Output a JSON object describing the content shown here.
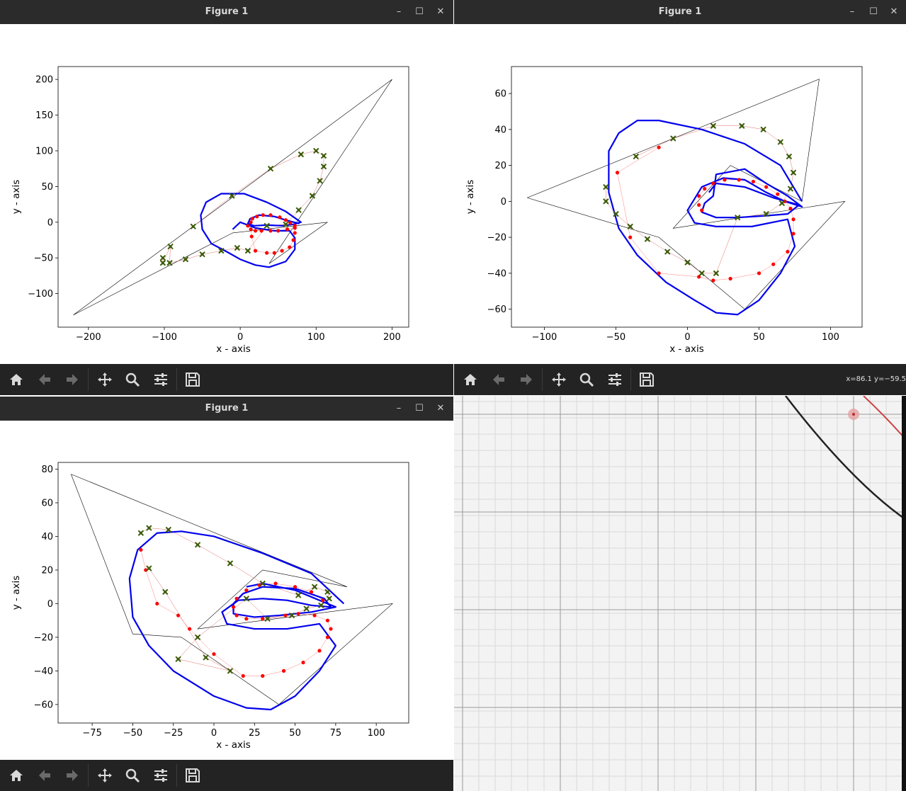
{
  "windows": [
    {
      "id": "w1",
      "title": "Figure 1",
      "coord_readout": "",
      "chart_data": {
        "type": "line",
        "xlabel": "x - axis",
        "ylabel": "y - axis",
        "xlim": [
          -240,
          222
        ],
        "ylim": [
          -147,
          218
        ],
        "xticks": [
          -200,
          -100,
          0,
          100,
          200
        ],
        "yticks": [
          -100,
          -50,
          0,
          50,
          100,
          150,
          200
        ],
        "tick_labels_x": [
          "−200",
          "−100",
          "0",
          "100",
          "200"
        ],
        "tick_labels_y": [
          "−100",
          "−50",
          "0",
          "50",
          "100",
          "150",
          "200"
        ],
        "polygon": [
          [
            -220,
            -130
          ],
          [
            200,
            200
          ],
          [
            38,
            -58
          ],
          [
            115,
            0
          ],
          [
            -10,
            -15
          ],
          [
            -220,
            -130
          ]
        ],
        "star_path": [
          [
            -102,
            -50
          ],
          [
            -102,
            -57
          ],
          [
            -92,
            -34
          ],
          [
            -93,
            -57
          ],
          [
            -72,
            -52
          ],
          [
            -50,
            -45
          ],
          [
            -25,
            -40
          ],
          [
            -4,
            -36
          ],
          [
            10,
            -40
          ],
          [
            35,
            -5
          ],
          [
            60,
            -3
          ],
          [
            77,
            17
          ],
          [
            95,
            37
          ],
          [
            105,
            58
          ],
          [
            110,
            78
          ],
          [
            110,
            93
          ],
          [
            100,
            100
          ],
          [
            80,
            95
          ],
          [
            40,
            75
          ],
          [
            -11,
            37
          ],
          [
            -62,
            -6
          ]
        ],
        "red_path": [
          [
            10,
            -5
          ],
          [
            14,
            -10
          ],
          [
            20,
            -12
          ],
          [
            28,
            -12
          ],
          [
            40,
            -12
          ],
          [
            50,
            -12
          ],
          [
            62,
            -10
          ],
          [
            72,
            -8
          ],
          [
            72,
            -15
          ],
          [
            70,
            -25
          ],
          [
            65,
            -35
          ],
          [
            55,
            -40
          ],
          [
            45,
            -43
          ],
          [
            35,
            -43
          ],
          [
            20,
            -40
          ],
          [
            15,
            -20
          ],
          [
            14,
            0
          ],
          [
            16,
            5
          ],
          [
            22,
            8
          ],
          [
            30,
            10
          ],
          [
            40,
            10
          ],
          [
            52,
            7
          ],
          [
            60,
            3
          ],
          [
            66,
            -1
          ],
          [
            72,
            -5
          ]
        ],
        "blue_curve": [
          [
            -10,
            -10
          ],
          [
            0,
            0
          ],
          [
            20,
            -8
          ],
          [
            45,
            -12
          ],
          [
            65,
            -12
          ],
          [
            72,
            -22
          ],
          [
            72,
            -38
          ],
          [
            60,
            -55
          ],
          [
            38,
            -63
          ],
          [
            20,
            -60
          ],
          [
            0,
            -52
          ],
          [
            -20,
            -40
          ],
          [
            -38,
            -30
          ],
          [
            -50,
            -10
          ],
          [
            -52,
            10
          ],
          [
            -45,
            28
          ],
          [
            -25,
            40
          ],
          [
            5,
            40
          ],
          [
            35,
            28
          ],
          [
            60,
            15
          ],
          [
            80,
            0
          ],
          [
            70,
            -3
          ],
          [
            55,
            -5
          ],
          [
            35,
            -4
          ],
          [
            18,
            -5
          ],
          [
            10,
            -2
          ],
          [
            13,
            5
          ],
          [
            25,
            10
          ],
          [
            45,
            8
          ],
          [
            60,
            3
          ],
          [
            78,
            -2
          ]
        ]
      }
    },
    {
      "id": "w2",
      "title": "Figure 1",
      "coord_readout": "x=86.1 y=−59.5",
      "chart_data": {
        "type": "line",
        "xlabel": "x - axis",
        "ylabel": "y - axis",
        "xlim": [
          -123,
          122
        ],
        "ylim": [
          -70,
          75
        ],
        "xticks": [
          -100,
          -50,
          0,
          50,
          100
        ],
        "yticks": [
          -60,
          -40,
          -20,
          0,
          20,
          40,
          60
        ],
        "tick_labels_x": [
          "−100",
          "−50",
          "0",
          "50",
          "100"
        ],
        "tick_labels_y": [
          "−60",
          "−40",
          "−20",
          "0",
          "20",
          "40",
          "60"
        ],
        "polygon": [
          [
            -112,
            2
          ],
          [
            -20,
            -20
          ],
          [
            40,
            -60
          ],
          [
            110,
            0
          ],
          [
            -10,
            -15
          ],
          [
            30,
            20
          ],
          [
            80,
            0
          ],
          [
            92,
            68
          ],
          [
            -112,
            2
          ]
        ],
        "star_path": [
          [
            -57,
            8
          ],
          [
            -57,
            0
          ],
          [
            -50,
            -7
          ],
          [
            -40,
            -14
          ],
          [
            -28,
            -21
          ],
          [
            -14,
            -28
          ],
          [
            0,
            -34
          ],
          [
            10,
            -40
          ],
          [
            20,
            -40
          ],
          [
            35,
            -9
          ],
          [
            55,
            -7
          ],
          [
            66,
            -1
          ],
          [
            72,
            7
          ],
          [
            74,
            16
          ],
          [
            71,
            25
          ],
          [
            65,
            33
          ],
          [
            53,
            40
          ],
          [
            38,
            42
          ],
          [
            18,
            42
          ],
          [
            -10,
            35
          ],
          [
            -36,
            25
          ]
        ],
        "red_path": [
          [
            10,
            -5
          ],
          [
            8,
            -2
          ],
          [
            8,
            3
          ],
          [
            12,
            7
          ],
          [
            18,
            10
          ],
          [
            26,
            12
          ],
          [
            36,
            12
          ],
          [
            46,
            11
          ],
          [
            55,
            8
          ],
          [
            63,
            4
          ],
          [
            68,
            0
          ],
          [
            72,
            -4
          ],
          [
            74,
            -10
          ],
          [
            74,
            -18
          ],
          [
            70,
            -28
          ],
          [
            60,
            -35
          ],
          [
            50,
            -40
          ],
          [
            30,
            -43
          ],
          [
            18,
            -44
          ],
          [
            8,
            -42
          ],
          [
            -20,
            -40
          ],
          [
            -40,
            -20
          ],
          [
            -49,
            16
          ],
          [
            -20,
            30
          ]
        ],
        "blue_curve": [
          [
            15,
            5
          ],
          [
            20,
            10
          ],
          [
            40,
            8
          ],
          [
            60,
            2
          ],
          [
            78,
            -2
          ],
          [
            70,
            -7
          ],
          [
            55,
            -8
          ],
          [
            35,
            -9
          ],
          [
            20,
            -9
          ],
          [
            10,
            -6
          ],
          [
            12,
            -1
          ],
          [
            18,
            3
          ],
          [
            20,
            15
          ],
          [
            40,
            18
          ],
          [
            55,
            10
          ],
          [
            70,
            3
          ],
          [
            80,
            -3
          ],
          [
            68,
            0
          ],
          [
            55,
            5
          ],
          [
            40,
            12
          ],
          [
            25,
            13
          ],
          [
            10,
            8
          ],
          [
            0,
            -5
          ],
          [
            5,
            -12
          ],
          [
            20,
            -14
          ],
          [
            45,
            -14
          ],
          [
            70,
            -10
          ],
          [
            75,
            -25
          ],
          [
            65,
            -40
          ],
          [
            50,
            -55
          ],
          [
            35,
            -63
          ],
          [
            20,
            -62
          ],
          [
            5,
            -55
          ],
          [
            -15,
            -45
          ],
          [
            -35,
            -30
          ],
          [
            -48,
            -15
          ],
          [
            -55,
            5
          ],
          [
            -55,
            28
          ],
          [
            -48,
            38
          ],
          [
            -35,
            45
          ],
          [
            -20,
            45
          ],
          [
            10,
            40
          ],
          [
            40,
            32
          ],
          [
            65,
            20
          ],
          [
            80,
            0
          ]
        ]
      }
    },
    {
      "id": "w3",
      "title": "Figure 1",
      "coord_readout": "",
      "chart_data": {
        "type": "line",
        "xlabel": "x - axis",
        "ylabel": "y - axis",
        "xlim": [
          -96,
          120
        ],
        "ylim": [
          -71,
          84
        ],
        "xticks": [
          -75,
          -50,
          -25,
          0,
          25,
          50,
          75,
          100
        ],
        "yticks": [
          -60,
          -40,
          -20,
          0,
          20,
          40,
          60,
          80
        ],
        "tick_labels_x": [
          "−75",
          "−50",
          "−25",
          "0",
          "25",
          "50",
          "75",
          "100"
        ],
        "tick_labels_y": [
          "−60",
          "−40",
          "−20",
          "0",
          "20",
          "40",
          "60",
          "80"
        ],
        "polygon": [
          [
            -88,
            77
          ],
          [
            -50,
            -18
          ],
          [
            -20,
            -20
          ],
          [
            40,
            -60
          ],
          [
            110,
            0
          ],
          [
            -10,
            -15
          ],
          [
            30,
            20
          ],
          [
            82,
            10
          ],
          [
            -88,
            77
          ]
        ],
        "star_path": [
          [
            -45,
            42
          ],
          [
            -40,
            45
          ],
          [
            -28,
            44
          ],
          [
            -10,
            35
          ],
          [
            10,
            24
          ],
          [
            30,
            12
          ],
          [
            52,
            5
          ],
          [
            62,
            10
          ],
          [
            70,
            7
          ],
          [
            71,
            3
          ],
          [
            66,
            -1
          ],
          [
            57,
            -3
          ],
          [
            48,
            -7
          ],
          [
            33,
            -9
          ],
          [
            20,
            3
          ],
          [
            -10,
            -20
          ],
          [
            -22,
            -33
          ],
          [
            10,
            -40
          ],
          [
            -5,
            -32
          ],
          [
            -30,
            7
          ],
          [
            -40,
            21
          ]
        ],
        "red_path": [
          [
            -45,
            32
          ],
          [
            -42,
            20
          ],
          [
            -35,
            0
          ],
          [
            -22,
            -7
          ],
          [
            -15,
            -15
          ],
          [
            0,
            -30
          ],
          [
            18,
            -43
          ],
          [
            30,
            -43
          ],
          [
            43,
            -40
          ],
          [
            55,
            -35
          ],
          [
            65,
            -28
          ],
          [
            70,
            -20
          ],
          [
            72,
            -15
          ],
          [
            70,
            -10
          ],
          [
            62,
            -7
          ],
          [
            52,
            -6
          ],
          [
            44,
            -7
          ],
          [
            30,
            -9
          ],
          [
            20,
            -9
          ],
          [
            14,
            -7
          ],
          [
            12,
            -2
          ],
          [
            14,
            3
          ],
          [
            20,
            8
          ],
          [
            28,
            11
          ],
          [
            38,
            12
          ],
          [
            50,
            10
          ],
          [
            60,
            7
          ],
          [
            67,
            2
          ]
        ],
        "blue_curve": [
          [
            20,
            10
          ],
          [
            30,
            12
          ],
          [
            50,
            8
          ],
          [
            65,
            2
          ],
          [
            75,
            -2
          ],
          [
            60,
            -5
          ],
          [
            40,
            -7
          ],
          [
            25,
            -8
          ],
          [
            12,
            -6
          ],
          [
            12,
            0
          ],
          [
            18,
            6
          ],
          [
            30,
            10
          ],
          [
            50,
            9
          ],
          [
            68,
            3
          ],
          [
            72,
            -2
          ],
          [
            60,
            -1
          ],
          [
            45,
            2
          ],
          [
            30,
            3
          ],
          [
            15,
            2
          ],
          [
            5,
            -5
          ],
          [
            8,
            -12
          ],
          [
            25,
            -15
          ],
          [
            45,
            -15
          ],
          [
            65,
            -12
          ],
          [
            75,
            -25
          ],
          [
            65,
            -40
          ],
          [
            50,
            -55
          ],
          [
            35,
            -63
          ],
          [
            20,
            -62
          ],
          [
            0,
            -55
          ],
          [
            -25,
            -40
          ],
          [
            -40,
            -25
          ],
          [
            -50,
            -8
          ],
          [
            -52,
            15
          ],
          [
            -47,
            32
          ],
          [
            -35,
            42
          ],
          [
            -20,
            43
          ],
          [
            0,
            40
          ],
          [
            30,
            30
          ],
          [
            60,
            18
          ],
          [
            80,
            0
          ]
        ]
      }
    }
  ],
  "toolbar": {
    "home_label": "home-icon",
    "back_label": "back-icon",
    "forward_label": "forward-icon",
    "pan_label": "pan-icon",
    "zoom_label": "zoom-icon",
    "configure_label": "configure-icon",
    "save_label": "save-icon"
  },
  "colors": {
    "titlebar": "#2b2b2b",
    "toolbar": "#232323",
    "blue_curve": "#0000ee",
    "red_points": "#ff0000",
    "star_points": "#3d5c0a"
  }
}
